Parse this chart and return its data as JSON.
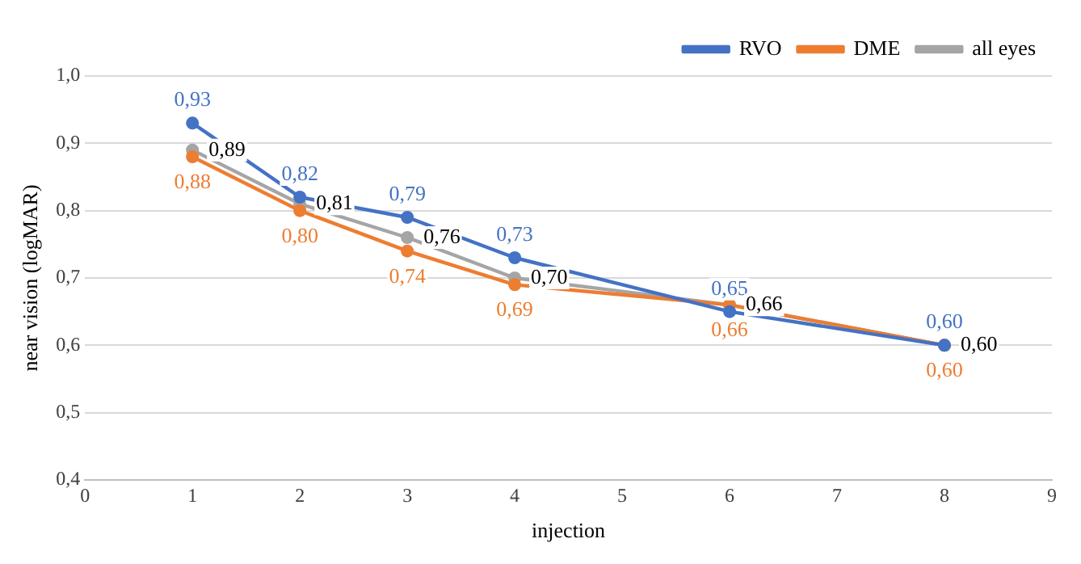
{
  "chart_data": {
    "type": "line",
    "xlabel": "injection",
    "ylabel": "near vision (logMAR)",
    "xlim": [
      0,
      9
    ],
    "xticks": [
      0,
      1,
      2,
      3,
      4,
      5,
      6,
      7,
      8,
      9
    ],
    "ylim": [
      0.4,
      1.0
    ],
    "yticks": [
      {
        "value": 0.4,
        "label": "0,4"
      },
      {
        "value": 0.5,
        "label": "0,5"
      },
      {
        "value": 0.6,
        "label": "0,6"
      },
      {
        "value": 0.7,
        "label": "0,7"
      },
      {
        "value": 0.8,
        "label": "0,8"
      },
      {
        "value": 0.9,
        "label": "0,9"
      },
      {
        "value": 1.0,
        "label": "1,0"
      }
    ],
    "grid": "y",
    "legend": "top right",
    "marker": "circle",
    "line_style": "solid",
    "series": [
      {
        "name": "RVO",
        "color": "#4472c4",
        "x": [
          1,
          2,
          3,
          4,
          6,
          8
        ],
        "values": [
          0.93,
          0.82,
          0.79,
          0.73,
          0.65,
          0.6
        ],
        "value_labels": [
          "0,93",
          "0,82",
          "0,79",
          "0,73",
          "0,65",
          "0,60"
        ]
      },
      {
        "name": "DME",
        "color": "#ed7d31",
        "x": [
          1,
          2,
          3,
          4,
          6,
          8
        ],
        "values": [
          0.88,
          0.8,
          0.74,
          0.69,
          0.66,
          0.6
        ],
        "value_labels": [
          "0,88",
          "0,80",
          "0,74",
          "0,69",
          "0,66",
          "0,60"
        ]
      },
      {
        "name": "all eyes",
        "color": "#a5a5a5",
        "x": [
          1,
          2,
          3,
          4,
          6,
          8
        ],
        "values": [
          0.89,
          0.81,
          0.76,
          0.7,
          0.66,
          0.6
        ],
        "value_labels": [
          "0,89",
          "0,81",
          "0,76",
          "0,70",
          "0,66",
          "0,60"
        ]
      }
    ]
  }
}
